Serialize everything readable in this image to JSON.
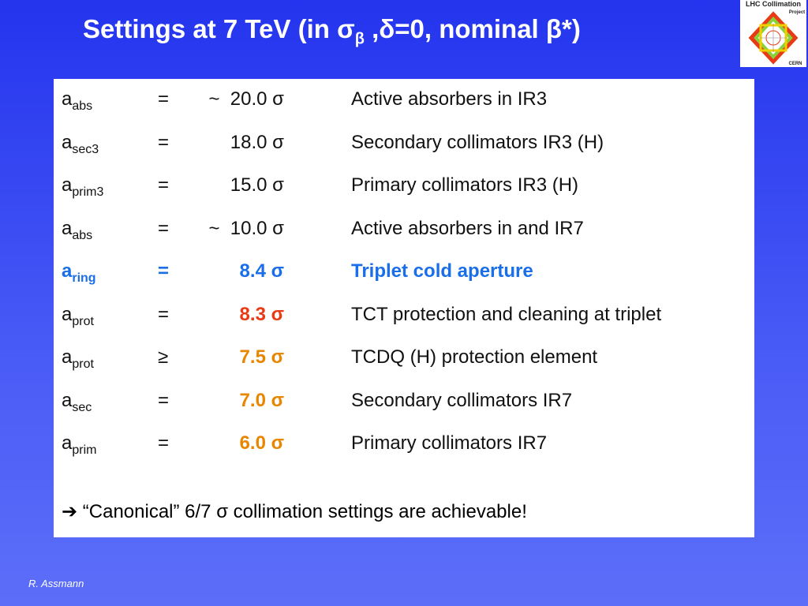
{
  "header": {
    "title": "Settings at 7 TeV (in σ",
    "title_sub": "β",
    "title_rest": " ,δ=0, nominal β*)"
  },
  "logo": {
    "line1": "LHC Collimation",
    "line2": "Project",
    "line3": "CERN"
  },
  "table": {
    "rows": [
      [
        "a",
        "abs",
        "=",
        "~  20.0 σ",
        "Active absorbers in IR3"
      ],
      [
        "a",
        "sec3",
        "=",
        "18.0 σ",
        "Secondary collimators IR3 (H)"
      ],
      [
        "a",
        "prim3",
        "=",
        "15.0 σ",
        "Primary collimators IR3 (H)"
      ],
      [
        "a",
        "abs",
        "=",
        "~  10.0 σ",
        "Active absorbers in and IR7"
      ],
      [
        "a",
        "ring",
        "=",
        "8.4 σ",
        "Triplet cold aperture"
      ],
      [
        "a",
        "prot",
        "=",
        "8.3 σ",
        "TCT protection and cleaning at triplet"
      ],
      [
        "a",
        "prot",
        "≥",
        "7.5 σ",
        "TCDQ (H) protection element"
      ],
      [
        "a",
        "sec",
        "=",
        "7.0 σ",
        "Secondary collimators IR7"
      ],
      [
        "a",
        "prim",
        "=",
        "6.0 σ",
        "Primary collimators IR7"
      ]
    ]
  },
  "note": "“Canonical” 6/7 σ collimation settings are achievable!",
  "footer": "R. Assmann"
}
